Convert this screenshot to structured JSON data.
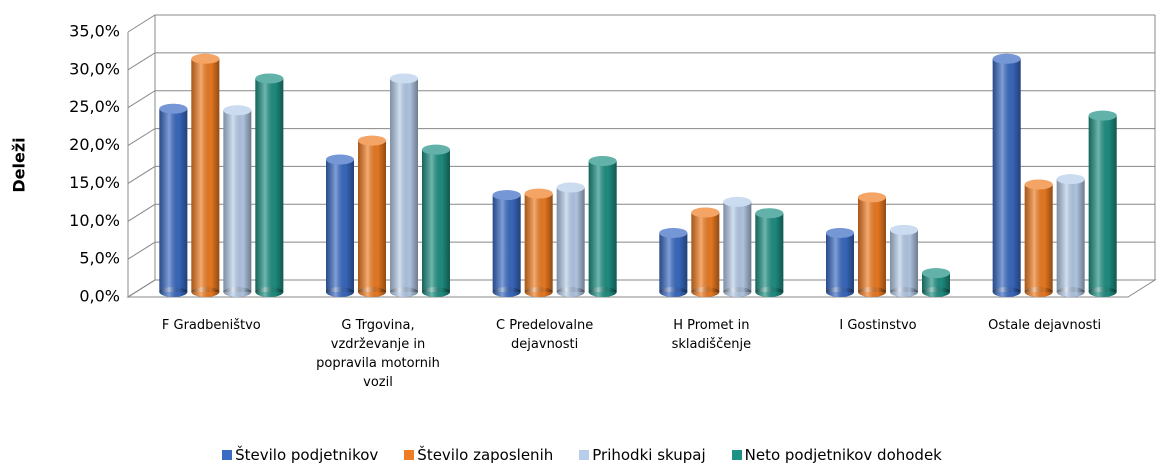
{
  "chart_data": {
    "type": "bar3d",
    "y_label": "Deleži",
    "categories": [
      "F Gradbeništvo",
      "G Trgovina, vzdrževanje in popravila motornih vozil",
      "C Predelovalne dejavnosti",
      "H Promet in skladiščenje",
      "I Gostinstvo",
      "Ostale dejavnosti"
    ],
    "series": [
      {
        "name": "Število podjetnikov",
        "color": "#3a6bc4",
        "values": [
          24.2,
          17.5,
          12.8,
          7.8,
          7.8,
          30.8
        ]
      },
      {
        "name": "Število zaposlenih",
        "color": "#f07d22",
        "values": [
          30.8,
          20.0,
          13.0,
          10.5,
          12.5,
          14.2
        ]
      },
      {
        "name": "Prihodki skupaj",
        "color": "#b7cdea",
        "values": [
          24.0,
          28.2,
          13.8,
          11.9,
          8.2,
          14.9
        ]
      },
      {
        "name": "Neto podjetnikov dohodek",
        "color": "#1f9184",
        "values": [
          28.2,
          18.8,
          17.3,
          10.4,
          2.5,
          23.3
        ]
      }
    ],
    "ylim": [
      0,
      35
    ],
    "yticks": [
      {
        "value": 0,
        "label": "0,0%"
      },
      {
        "value": 5,
        "label": "5,0%"
      },
      {
        "value": 10,
        "label": "10,0%"
      },
      {
        "value": 15,
        "label": "15,0%"
      },
      {
        "value": 20,
        "label": "20,0%"
      },
      {
        "value": 25,
        "label": "25,0%"
      },
      {
        "value": 30,
        "label": "30,0%"
      },
      {
        "value": 35,
        "label": "35,0%"
      }
    ],
    "grid": true,
    "legend": "bottom"
  }
}
